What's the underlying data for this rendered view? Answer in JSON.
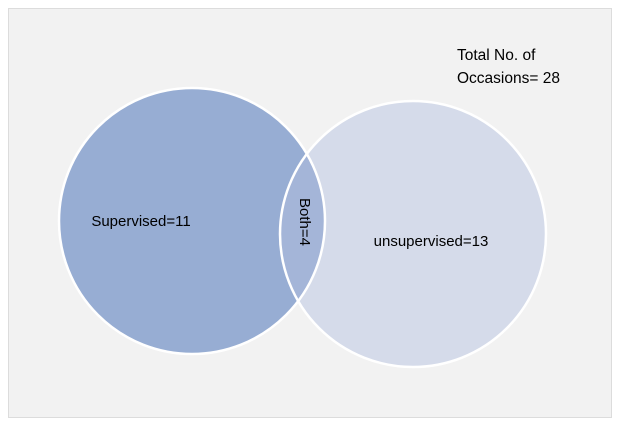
{
  "diagram": {
    "type": "venn",
    "total_note": {
      "line1": "Total No. of",
      "line2": "Occasions= 28"
    },
    "sets": [
      {
        "label": "Supervised=11",
        "color": "#97add3"
      },
      {
        "label": "unsupervised=13",
        "color": "#d5dbea"
      }
    ],
    "intersection": {
      "label": "Both=4",
      "color": "#a4b5d8"
    },
    "colors": {
      "panel_background": "#f2f2f2",
      "outline": "#ffffff"
    }
  }
}
